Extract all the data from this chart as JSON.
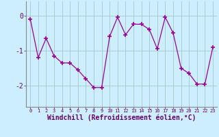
{
  "x": [
    0,
    1,
    2,
    3,
    4,
    5,
    6,
    7,
    8,
    9,
    10,
    11,
    12,
    13,
    14,
    15,
    16,
    17,
    18,
    19,
    20,
    21,
    22,
    23
  ],
  "y": [
    -0.1,
    -1.2,
    -0.65,
    -1.15,
    -1.35,
    -1.35,
    -1.55,
    -1.8,
    -2.05,
    -2.05,
    -0.6,
    -0.05,
    -0.55,
    -0.25,
    -0.25,
    -0.4,
    -0.95,
    -0.05,
    -0.5,
    -1.5,
    -1.65,
    -1.95,
    -1.95,
    -0.9
  ],
  "line_color": "#990099",
  "marker": "+",
  "markersize": 4,
  "linewidth": 0.9,
  "bg_color": "#cceeff",
  "grid_color": "#aacccc",
  "xlabel": "Windchill (Refroidissement éolien,°C)",
  "xlabel_fontsize": 7,
  "ylabel_ticks": [
    0,
    -1,
    -2
  ],
  "xlim": [
    -0.5,
    23.5
  ],
  "ylim": [
    -2.6,
    0.4
  ],
  "xtick_labels": [
    "0",
    "1",
    "2",
    "3",
    "4",
    "5",
    "6",
    "7",
    "8",
    "9",
    "10",
    "11",
    "12",
    "13",
    "14",
    "15",
    "16",
    "17",
    "18",
    "19",
    "20",
    "21",
    "22",
    "23"
  ],
  "ytick_labels": [
    "0",
    "-1",
    "-2"
  ]
}
